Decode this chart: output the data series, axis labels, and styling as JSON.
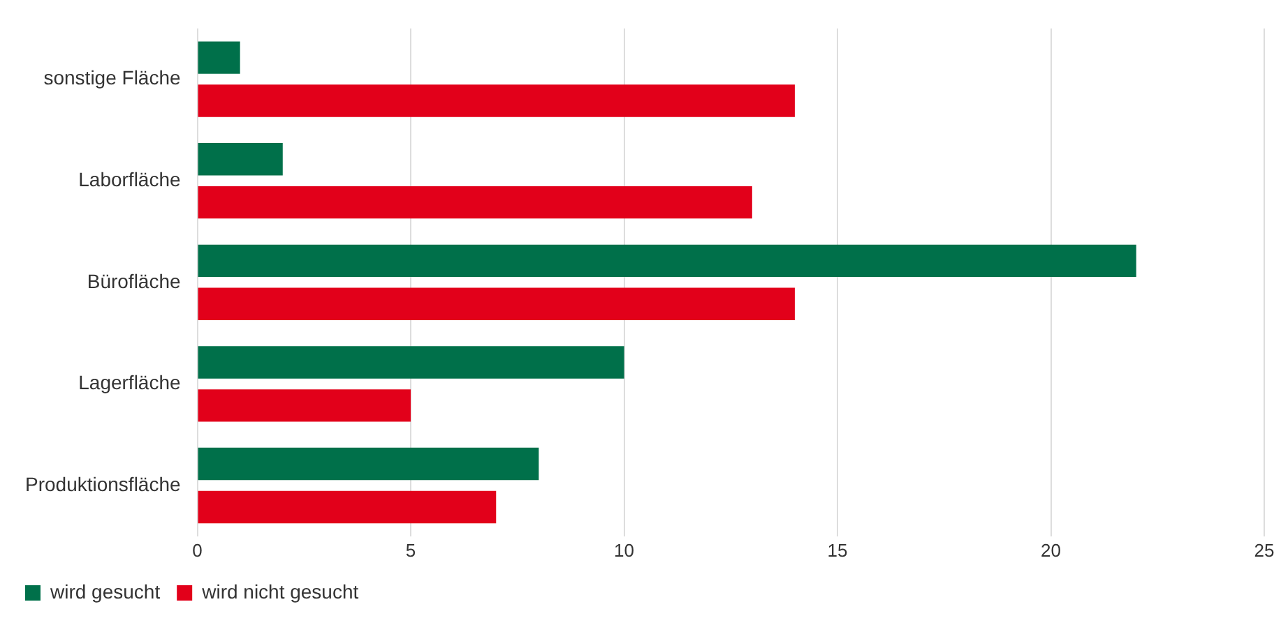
{
  "chart_data": {
    "type": "bar",
    "orientation": "horizontal",
    "categories": [
      "sonstige Fläche",
      "Laborfläche",
      "Bürofläche",
      "Lagerfläche",
      "Produktionsfläche"
    ],
    "series": [
      {
        "name": "wird gesucht",
        "color": "#00704a",
        "values": [
          1,
          2,
          22,
          10,
          8
        ]
      },
      {
        "name": "wird nicht gesucht",
        "color": "#e2001a",
        "values": [
          14,
          13,
          14,
          5,
          7
        ]
      }
    ],
    "xlim": [
      0,
      25
    ],
    "xticks": [
      0,
      5,
      10,
      15,
      20,
      25
    ],
    "grid": "x",
    "legend": "bottom left"
  }
}
